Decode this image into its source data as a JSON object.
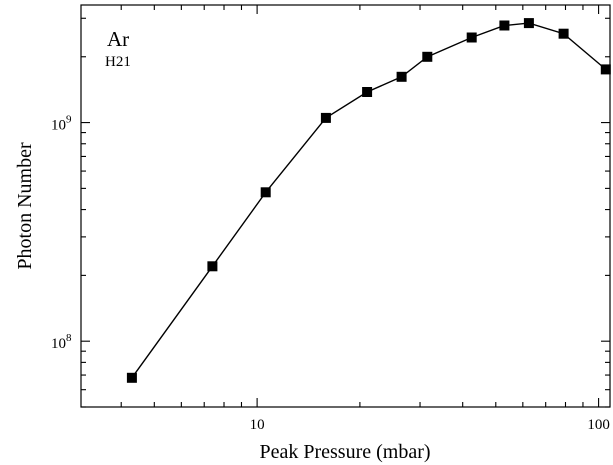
{
  "chart_data": {
    "type": "line",
    "title": "",
    "annotation": {
      "line1": "Ar",
      "line2": "H21"
    },
    "xlabel": "Peak Pressure (mbar)",
    "ylabel": "Photon Number",
    "x_scale": "log",
    "y_scale": "log",
    "xlim": [
      3.05,
      108
    ],
    "ylim": [
      50000000.0,
      3450000000.0
    ],
    "x_ticks": [
      {
        "value": 10,
        "label": "10"
      },
      {
        "value": 100,
        "label": "100"
      }
    ],
    "y_ticks": [
      {
        "value": 100000000.0,
        "base": "10",
        "exp": "8"
      },
      {
        "value": 1000000000.0,
        "base": "10",
        "exp": "9"
      }
    ],
    "grid": false,
    "legend": "none",
    "marker": "square",
    "series": [
      {
        "x": [
          4.3,
          7.4,
          10.6,
          15.9,
          21.0,
          26.5,
          31.5,
          42.5,
          53.0,
          62.5,
          79.0,
          105.0
        ],
        "y": [
          68000000.0,
          220000000.0,
          480000000.0,
          1050000000.0,
          1380000000.0,
          1620000000.0,
          2000000000.0,
          2450000000.0,
          2780000000.0,
          2850000000.0,
          2550000000.0,
          1750000000.0
        ]
      }
    ]
  }
}
